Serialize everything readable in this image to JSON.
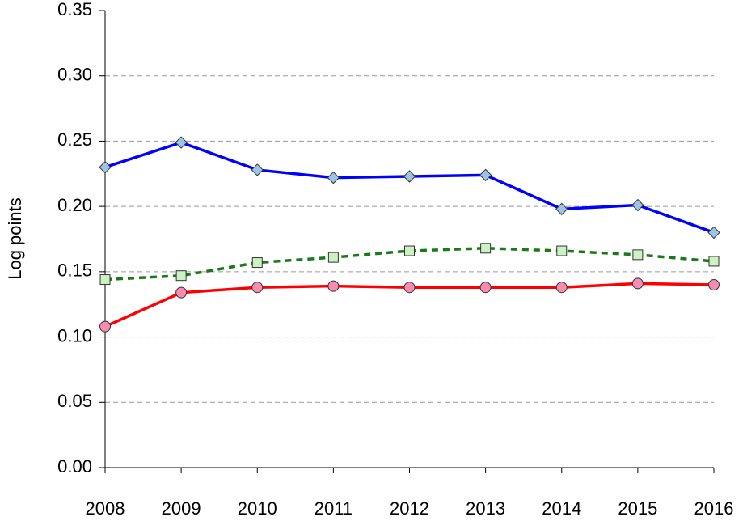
{
  "chart_data": {
    "type": "line",
    "y_label": "Log points",
    "categories": [
      "2008",
      "2009",
      "2010",
      "2011",
      "2012",
      "2013",
      "2014",
      "2015",
      "2016"
    ],
    "series": [
      {
        "color": "#0000ff",
        "marker": "diamond",
        "marker_color": "#9dc3e6",
        "dash": false,
        "values": [
          0.23,
          0.249,
          0.228,
          0.222,
          0.223,
          0.224,
          0.198,
          0.201,
          0.18
        ]
      },
      {
        "color": "#1a7a1a",
        "marker": "square",
        "marker_color": "#ccf2c4",
        "dash": true,
        "values": [
          0.144,
          0.147,
          0.157,
          0.161,
          0.166,
          0.168,
          0.166,
          0.163,
          0.158
        ]
      },
      {
        "color": "#ff0000",
        "marker": "circle",
        "marker_color": "#f78bb0",
        "dash": false,
        "values": [
          0.108,
          0.134,
          0.138,
          0.139,
          0.138,
          0.138,
          0.138,
          0.141,
          0.14
        ]
      }
    ],
    "ylim": [
      0,
      0.35
    ],
    "yticks": [
      {
        "value": 0,
        "label": "0.00"
      },
      {
        "value": 0.05,
        "label": "0.05"
      },
      {
        "value": 0.1,
        "label": "0.10"
      },
      {
        "value": 0.15,
        "label": "0.15"
      },
      {
        "value": 0.2,
        "label": "0.20"
      },
      {
        "value": 0.25,
        "label": "0.25"
      },
      {
        "value": 0.3,
        "label": "0.30"
      },
      {
        "value": 0.35,
        "label": "0.35"
      }
    ],
    "grid": true
  }
}
